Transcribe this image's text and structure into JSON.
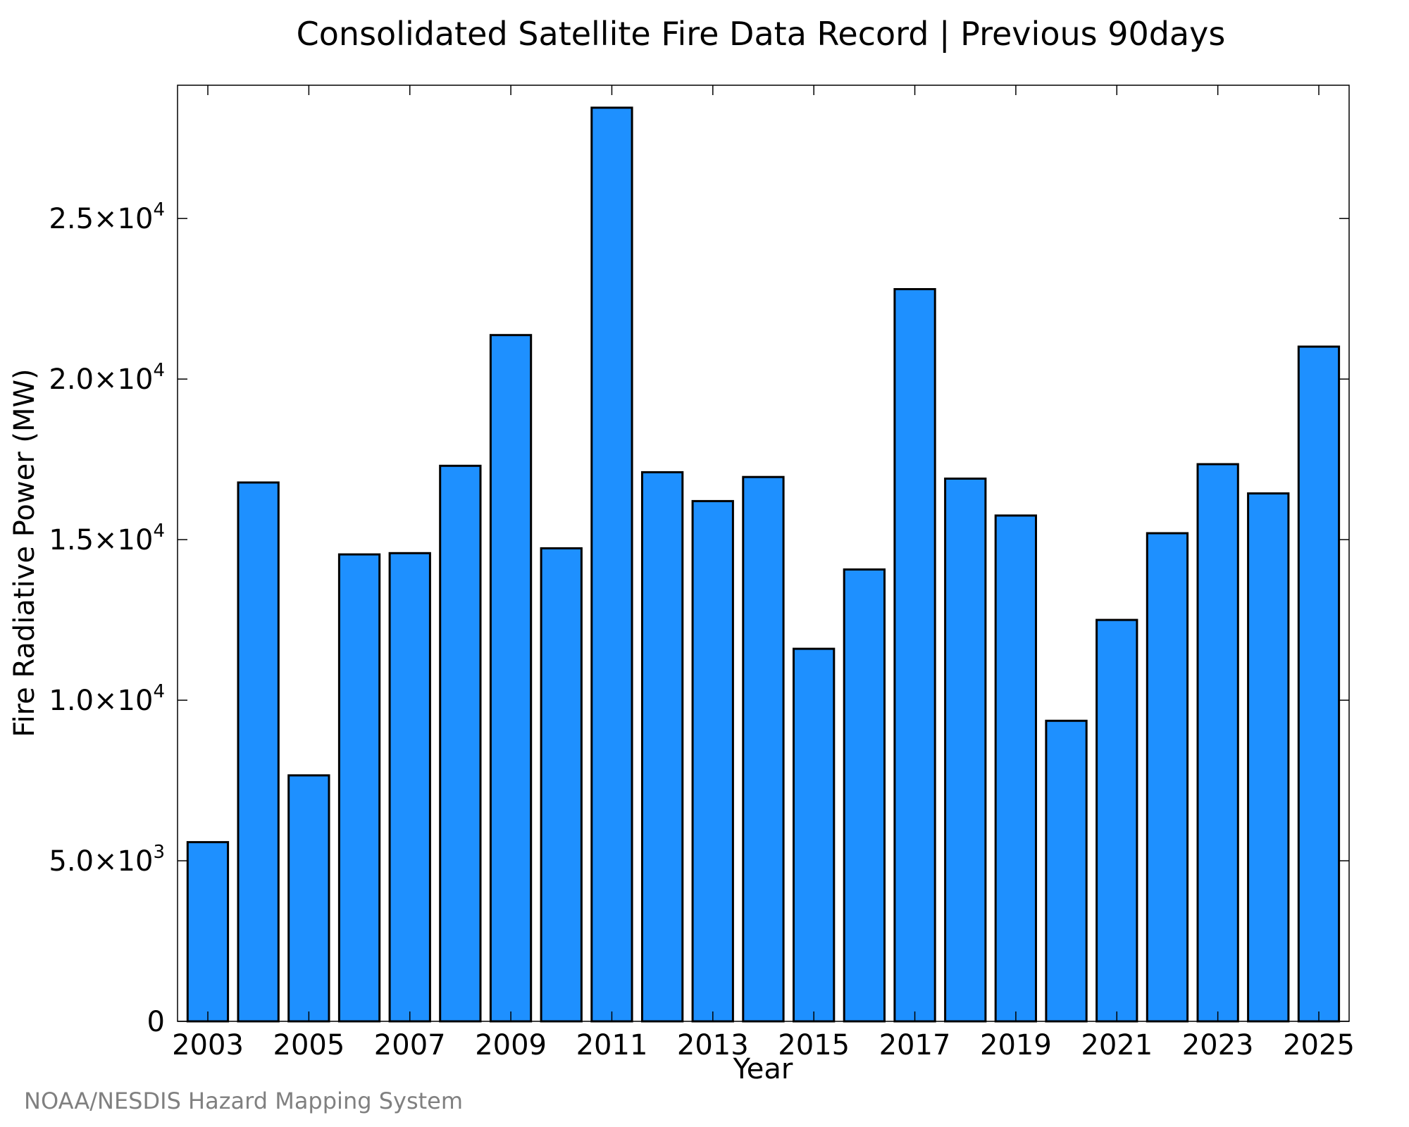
{
  "colors": {
    "bar_fill": "#1e90ff",
    "bar_stroke": "#000000",
    "credit_text": "#808080",
    "axis": "#000000"
  },
  "credit": "NOAA/NESDIS Hazard Mapping System",
  "chart_data": {
    "type": "bar",
    "title": "Consolidated Satellite Fire Data Record | Previous 90days",
    "xlabel": "Year",
    "ylabel": "Fire Radiative Power (MW)",
    "categories": [
      "2003",
      "2004",
      "2005",
      "2006",
      "2007",
      "2008",
      "2009",
      "2010",
      "2011",
      "2012",
      "2013",
      "2014",
      "2015",
      "2016",
      "2017",
      "2018",
      "2019",
      "2020",
      "2021",
      "2022",
      "2023",
      "2024",
      "2025"
    ],
    "values": [
      5580,
      16780,
      7660,
      14540,
      14580,
      17300,
      21370,
      14730,
      28450,
      17100,
      16200,
      16950,
      11600,
      14070,
      22800,
      16900,
      15750,
      9360,
      12500,
      15200,
      17350,
      16440,
      21010
    ],
    "x_ticks": [
      {
        "year": 2003,
        "label": "2003"
      },
      {
        "year": 2005,
        "label": "2005"
      },
      {
        "year": 2007,
        "label": "2007"
      },
      {
        "year": 2009,
        "label": "2009"
      },
      {
        "year": 2011,
        "label": "2011"
      },
      {
        "year": 2013,
        "label": "2013"
      },
      {
        "year": 2015,
        "label": "2015"
      },
      {
        "year": 2017,
        "label": "2017"
      },
      {
        "year": 2019,
        "label": "2019"
      },
      {
        "year": 2021,
        "label": "2021"
      },
      {
        "year": 2023,
        "label": "2023"
      },
      {
        "year": 2025,
        "label": "2025"
      }
    ],
    "y_ticks": [
      {
        "value": 0,
        "mantissa": "0",
        "exponent": ""
      },
      {
        "value": 5000,
        "mantissa": "5.0×10",
        "exponent": "3"
      },
      {
        "value": 10000,
        "mantissa": "1.0×10",
        "exponent": "4"
      },
      {
        "value": 15000,
        "mantissa": "1.5×10",
        "exponent": "4"
      },
      {
        "value": 20000,
        "mantissa": "2.0×10",
        "exponent": "4"
      },
      {
        "value": 25000,
        "mantissa": "2.5×10",
        "exponent": "4"
      }
    ],
    "xlim": [
      2002.4,
      2025.6
    ],
    "ylim": [
      0,
      29150
    ],
    "grid": false,
    "legend": "none"
  }
}
